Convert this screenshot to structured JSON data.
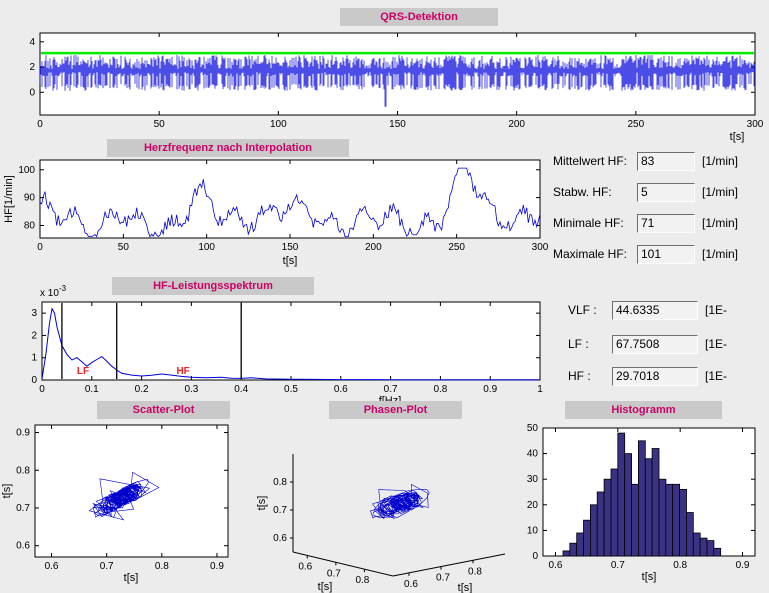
{
  "window": {
    "background": "#ececec",
    "strip_background": "#c9c9c9",
    "title_text_color": "#cc0066",
    "plot_line_color": "#0000dd"
  },
  "stats": {
    "rows": [
      {
        "label": "Mittelwert HF:",
        "value": "83",
        "unit": "[1/min]"
      },
      {
        "label": "Stabw. HF:",
        "value": "5",
        "unit": "[1/min]"
      },
      {
        "label": "Minimale HF:",
        "value": "71",
        "unit": "[1/min]"
      },
      {
        "label": "Maximale HF:",
        "value": "101",
        "unit": "[1/min]"
      }
    ]
  },
  "spectral": {
    "rows": [
      {
        "label": "VLF :",
        "value": "44.6335",
        "unit": "[1E-"
      },
      {
        "label": "LF :",
        "value": "67.7508",
        "unit": "[1E-"
      },
      {
        "label": "HF :",
        "value": "29.7018",
        "unit": "[1E-"
      }
    ]
  },
  "chart_data": [
    {
      "id": "qrs",
      "type": "line",
      "title": "QRS-Detektion",
      "xlabel": "t[s]",
      "xlim": [
        0,
        300
      ],
      "ylim": [
        -1.8,
        4.7
      ],
      "xticks": [
        0,
        50,
        100,
        150,
        200,
        250,
        300
      ],
      "yticks": [
        0,
        2,
        4
      ],
      "line_color": "#0000dd",
      "threshold_line": {
        "y": 3.1,
        "color": "#00ee00"
      },
      "signal": {
        "description": "ECG with QRS complexes, ~83 bpm, dense spike train",
        "baseline": 1.7,
        "spike_high": 2.95,
        "spike_low": 0.2,
        "artifacts": [
          {
            "t": 28,
            "y": 0.55
          },
          {
            "t": 145,
            "y": -1.15
          }
        ]
      }
    },
    {
      "id": "hf",
      "type": "line",
      "title": "Herzfrequenz nach Interpolation",
      "xlabel": "t[s]",
      "ylabel": "HF[1/min]",
      "xlim": [
        0,
        300
      ],
      "ylim": [
        75.5,
        103.5
      ],
      "xticks": [
        0,
        50,
        100,
        150,
        200,
        250,
        300
      ],
      "yticks": [
        80,
        90,
        100
      ],
      "line_color": "#0000dd",
      "series": {
        "name": "HF",
        "mean": 83,
        "std": 5,
        "min": 71,
        "max": 101,
        "peaks": [
          {
            "t": 95,
            "amp": 8
          },
          {
            "t": 255,
            "amp": 14
          }
        ],
        "dips": [
          {
            "t": 35,
            "amp": 5
          }
        ]
      }
    },
    {
      "id": "spectrum",
      "type": "line",
      "title": "HF-Leistungsspektrum",
      "xlabel": "f[Hz]",
      "power_unit": "1e-3",
      "y_scale_label": {
        "mantissa": "x 10",
        "exponent": "-3"
      },
      "xlim": [
        0,
        1
      ],
      "ylim": [
        0,
        3.5
      ],
      "xticks": [
        0,
        0.1,
        0.2,
        0.3,
        0.4,
        0.5,
        0.6,
        0.7,
        0.8,
        0.9,
        1
      ],
      "yticks": [
        0,
        1,
        2,
        3
      ],
      "line_color": "#0000dd",
      "band_lines": [
        0.04,
        0.15,
        0.4
      ],
      "band_labels": [
        {
          "text": "LF",
          "f": 0.07,
          "color": "#ee2222"
        },
        {
          "text": "HF",
          "f": 0.27,
          "color": "#ee2222"
        }
      ],
      "points": [
        [
          0,
          0.05
        ],
        [
          0.008,
          1.2
        ],
        [
          0.015,
          2.55
        ],
        [
          0.02,
          3.2
        ],
        [
          0.025,
          3.0
        ],
        [
          0.03,
          2.4
        ],
        [
          0.04,
          1.55
        ],
        [
          0.05,
          1.15
        ],
        [
          0.06,
          0.9
        ],
        [
          0.07,
          1.0
        ],
        [
          0.08,
          0.82
        ],
        [
          0.09,
          0.62
        ],
        [
          0.1,
          0.78
        ],
        [
          0.11,
          0.92
        ],
        [
          0.12,
          1.05
        ],
        [
          0.13,
          0.85
        ],
        [
          0.14,
          0.62
        ],
        [
          0.15,
          0.45
        ],
        [
          0.16,
          0.3
        ],
        [
          0.18,
          0.22
        ],
        [
          0.2,
          0.18
        ],
        [
          0.22,
          0.21
        ],
        [
          0.24,
          0.27
        ],
        [
          0.26,
          0.22
        ],
        [
          0.28,
          0.16
        ],
        [
          0.3,
          0.12
        ],
        [
          0.33,
          0.1
        ],
        [
          0.36,
          0.12
        ],
        [
          0.38,
          0.08
        ],
        [
          0.4,
          0.07
        ],
        [
          0.42,
          0.1
        ],
        [
          0.45,
          0.05
        ],
        [
          0.5,
          0.035
        ],
        [
          0.55,
          0.025
        ],
        [
          0.6,
          0.02
        ],
        [
          0.7,
          0.015
        ],
        [
          0.8,
          0.01
        ],
        [
          0.9,
          0.008
        ],
        [
          1,
          0.008
        ]
      ]
    },
    {
      "id": "scatter",
      "type": "scatter",
      "title": "Scatter-Plot",
      "xlabel": "t[s]",
      "ylabel": "t[s]",
      "xlim": [
        0.57,
        0.92
      ],
      "ylim": [
        0.57,
        0.92
      ],
      "xticks": [
        0.6,
        0.7,
        0.8,
        0.9
      ],
      "yticks": [
        0.6,
        0.7,
        0.8,
        0.9
      ],
      "line_color": "#0000cc",
      "series": {
        "description": "Poincare plot RR(n) vs RR(n+1), points connected by lines",
        "center": 0.725,
        "range": [
          0.62,
          0.86
        ],
        "n": 300
      }
    },
    {
      "id": "phase",
      "type": "line3d",
      "title": "Phasen-Plot",
      "axis_labels": [
        "t[s]",
        "t[s]",
        "t[s]"
      ],
      "lims": [
        0.55,
        0.9
      ],
      "ticks": [
        0.6,
        0.7,
        0.8
      ],
      "line_color": "#0000cc",
      "description": "3D phase trajectory RR(n), RR(n+1), RR(n+2)"
    },
    {
      "id": "hist",
      "type": "bar",
      "title": "Histogramm",
      "xlabel": "t[s]",
      "xlim": [
        0.58,
        0.92
      ],
      "ylim": [
        0,
        50
      ],
      "xticks": [
        0.6,
        0.7,
        0.8,
        0.9
      ],
      "yticks": [
        0,
        10,
        20,
        30,
        40,
        50
      ],
      "bar_fill": "#3a3285",
      "bar_edge": "#000000",
      "bin_start": 0.612,
      "bin_width": 0.011,
      "counts": [
        2,
        5,
        9,
        14,
        20,
        25,
        30,
        34,
        48,
        40,
        28,
        45,
        38,
        42,
        30,
        28,
        28,
        26,
        17,
        9,
        7,
        6,
        3
      ]
    }
  ]
}
